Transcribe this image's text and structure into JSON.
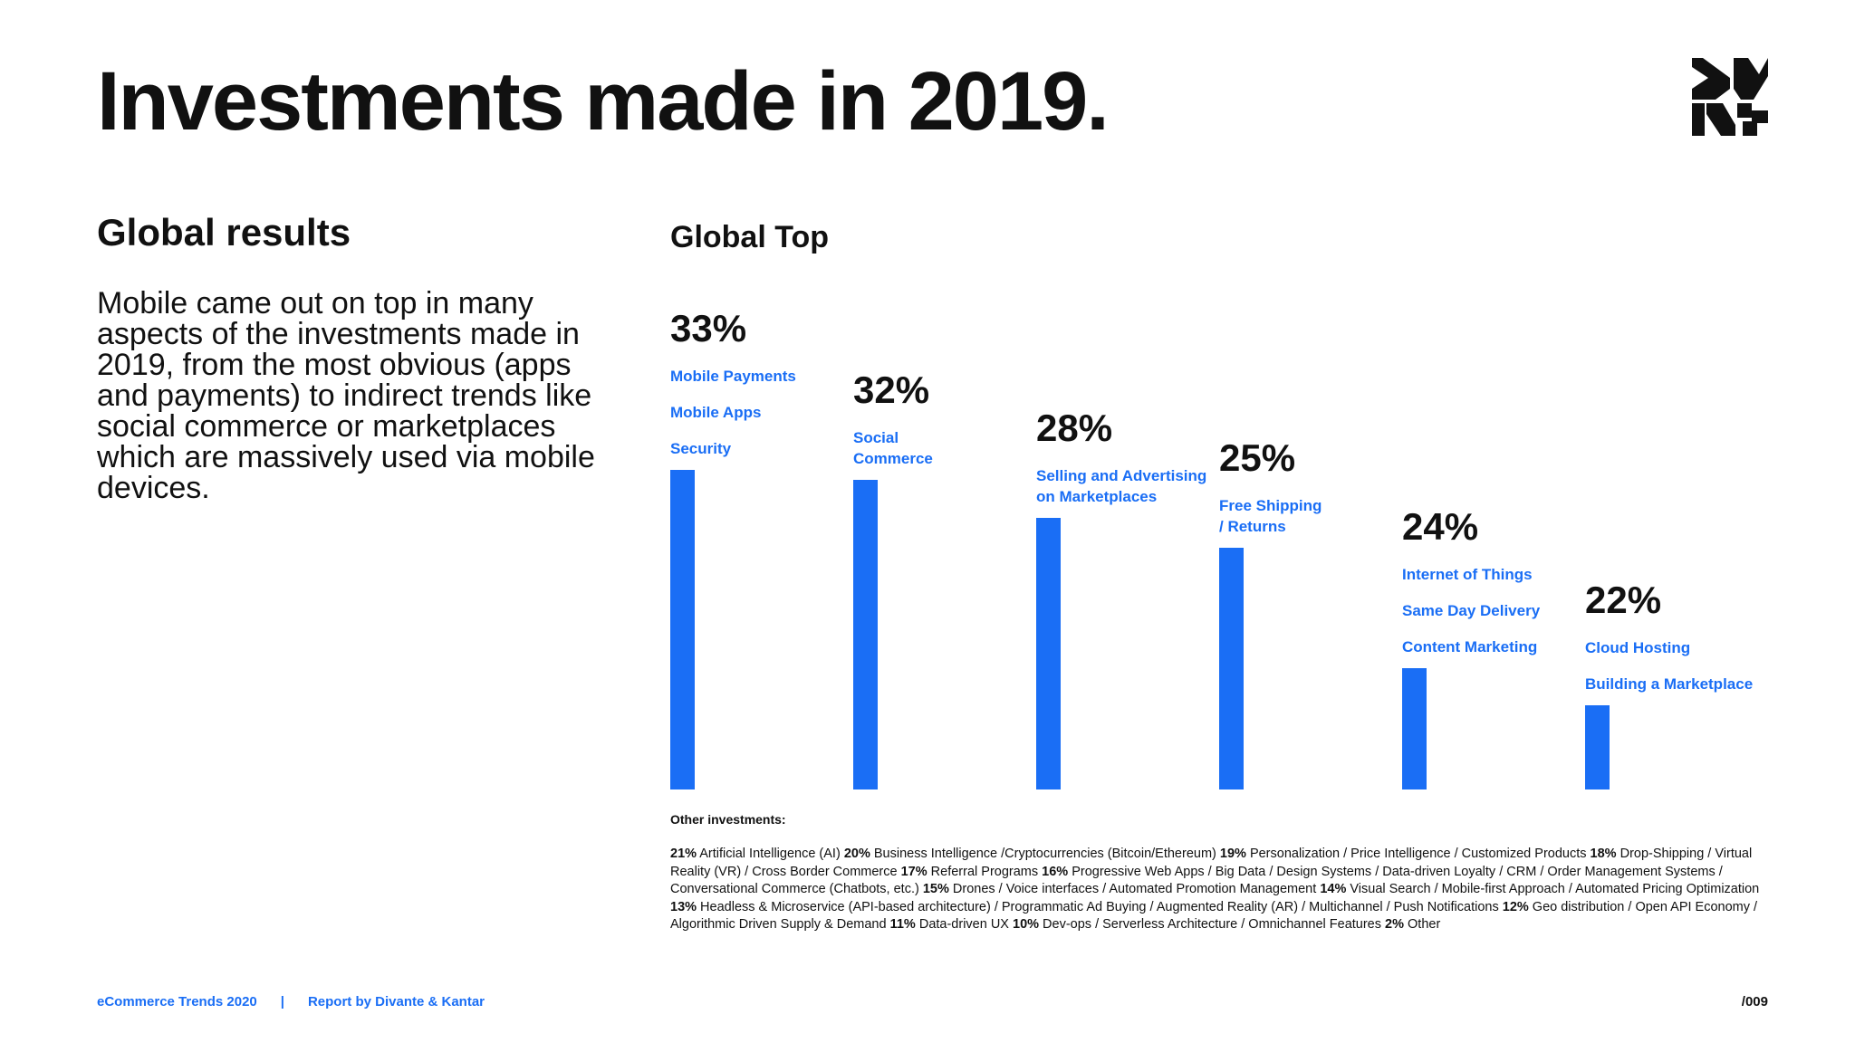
{
  "header": {
    "title": "Investments made in 2019."
  },
  "logo": {
    "icon": "brand-logo-icon"
  },
  "section": {
    "heading": "Global results",
    "body": "Mobile came out on top in many aspects of the investments made in 2019, from the most obvious (apps and payments) to indirect trends like social commerce or marketplaces which are massively used via mobile devices."
  },
  "chart_data": {
    "type": "bar",
    "title": "Global Top",
    "ylim": [
      0,
      33
    ],
    "grid": false,
    "bar_color": "#1a6ef5",
    "bars": [
      {
        "value": 33,
        "label": "33%",
        "categories": [
          "Mobile Payments",
          "Mobile Apps",
          "Security"
        ]
      },
      {
        "value": 32,
        "label": "32%",
        "categories": [
          "Social Commerce"
        ]
      },
      {
        "value": 28,
        "label": "28%",
        "categories": [
          "Selling and Advertising on Marketplaces"
        ]
      },
      {
        "value": 25,
        "label": "25%",
        "categories": [
          "Free Shipping / Returns"
        ]
      },
      {
        "value": 24,
        "label": "24%",
        "categories": [
          "Internet of Things",
          "Same Day Delivery",
          "Content Marketing"
        ]
      },
      {
        "value": 22,
        "label": "22%",
        "categories": [
          "Cloud Hosting",
          "Building a Marketplace"
        ]
      }
    ]
  },
  "other_investments": {
    "heading": "Other investments:",
    "items": [
      {
        "pct": "21%",
        "text": "Artificial Intelligence (AI)"
      },
      {
        "pct": "20%",
        "text": "Business Intelligence /Cryptocurrencies (Bitcoin/Ethereum)"
      },
      {
        "pct": "19%",
        "text": "Personalization / Price Intelligence / Customized Products"
      },
      {
        "pct": "18%",
        "text": "Drop-Shipping / Virtual Reality (VR) / Cross Border Commerce"
      },
      {
        "pct": "17%",
        "text": "Referral Programs"
      },
      {
        "pct": "16%",
        "text": "Progressive Web Apps / Big Data / Design Systems / Data-driven Loyalty / CRM / Order Management Systems / Conversational Commerce (Chatbots, etc.)"
      },
      {
        "pct": "15%",
        "text": "Drones / Voice interfaces / Automated Promotion Management"
      },
      {
        "pct": "14%",
        "text": "Visual Search / Mobile-first Approach / Automated Pricing Optimization"
      },
      {
        "pct": "13%",
        "text": "Headless & Microservice (API-based architecture) / Programmatic Ad Buying / Augmented Reality (AR) / Multichannel / Push Notifications"
      },
      {
        "pct": "12%",
        "text": "Geo distribution / Open API Economy / Algorithmic Driven Supply & Demand"
      },
      {
        "pct": "11%",
        "text": "Data-driven UX"
      },
      {
        "pct": "10%",
        "text": "Dev-ops / Serverless Architecture / Omnichannel Features"
      },
      {
        "pct": "2%",
        "text": "Other"
      }
    ]
  },
  "footer": {
    "report": "eCommerce Trends 2020",
    "separator": "|",
    "author": "Report by Divante & Kantar",
    "page": "/009"
  }
}
